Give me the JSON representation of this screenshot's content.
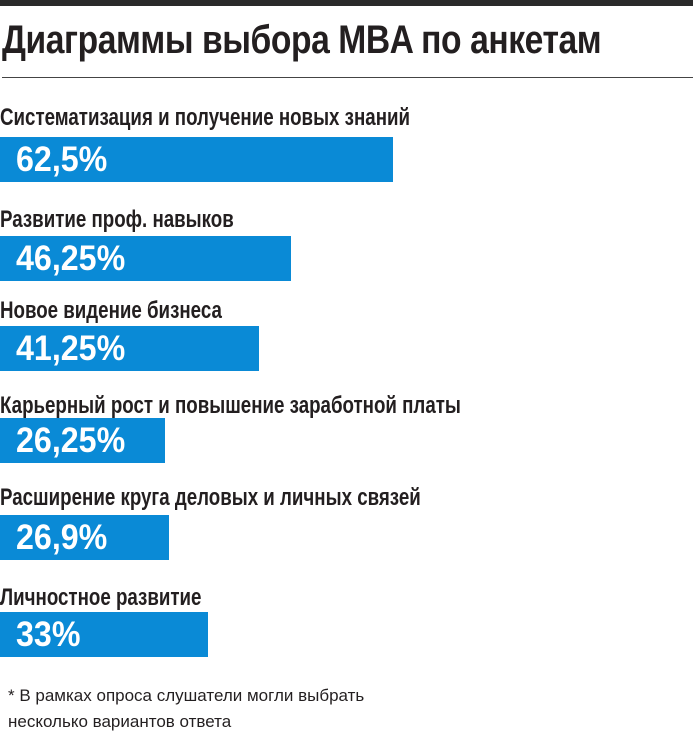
{
  "chart_data": {
    "type": "bar",
    "orientation": "horizontal",
    "title": "Диаграммы выбора MBA по анкетам",
    "categories": [
      "Систематизация и получение новых знаний",
      "Развитие проф. навыков",
      "Новое видение бизнеса",
      "Карьерный рост и повышение заработной платы",
      "Расширение круга деловых и личных связей",
      "Личностное развитие"
    ],
    "values": [
      62.5,
      46.25,
      41.25,
      26.25,
      26.9,
      33
    ],
    "value_labels": [
      "62,5%",
      "46,25%",
      "41,25%",
      "26,25%",
      "26,9%",
      "33%"
    ],
    "unit": "%",
    "bar_color": "#0a8ad6",
    "grid": false,
    "footnote": [
      "* В рамках опроса слушатели могли выбрать",
      "несколько вариантов ответа"
    ]
  }
}
